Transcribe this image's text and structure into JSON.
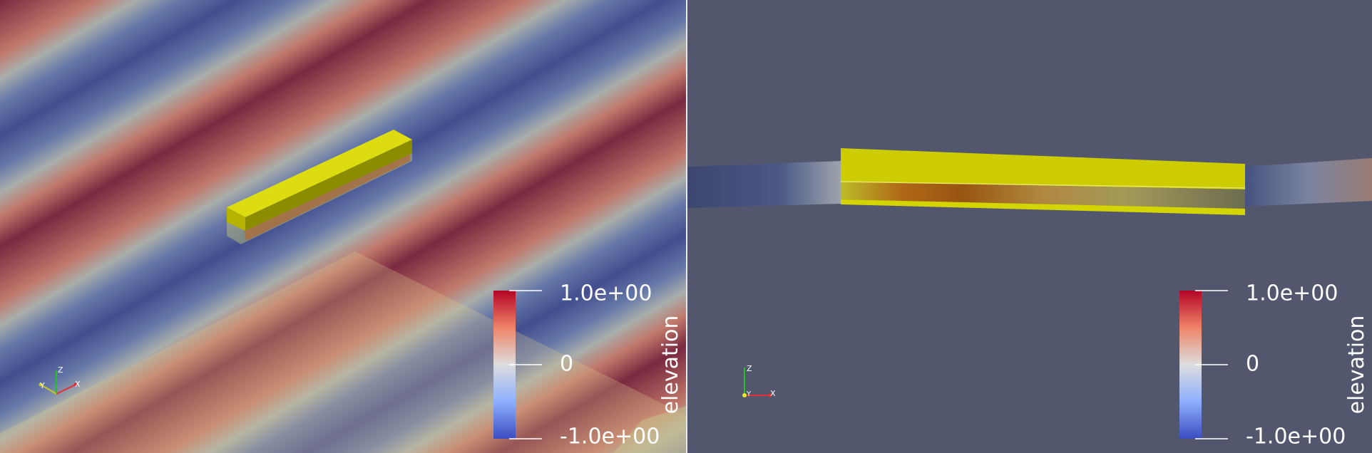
{
  "views": [
    {
      "id": "left",
      "projection": "perspective",
      "colorbar": {
        "title": "elevation",
        "max_label": "1.0e+00",
        "mid_label": "0",
        "min_label": "-1.0e+00"
      },
      "axes": {
        "x": "X",
        "y": "Y",
        "z": "Z"
      }
    },
    {
      "id": "right",
      "projection": "side",
      "colorbar": {
        "title": "elevation",
        "max_label": "1.0e+00",
        "mid_label": "0",
        "min_label": "-1.0e+00"
      },
      "axes": {
        "x": "X",
        "y": "Y",
        "z": "Z"
      }
    }
  ],
  "colors": {
    "background": "#52576e",
    "high": "#b40426",
    "low": "#3b4cc0",
    "mid": "#dddddd",
    "solid": "#d4d400"
  }
}
